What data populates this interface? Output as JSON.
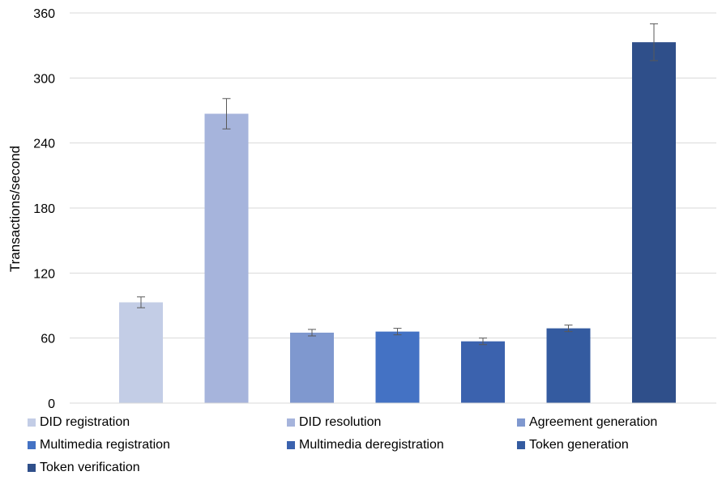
{
  "chart_data": {
    "type": "bar",
    "title": "",
    "xlabel": "",
    "ylabel": "Transactions/second",
    "ylim": [
      0,
      360
    ],
    "yticks": [
      0,
      60,
      120,
      180,
      240,
      300,
      360
    ],
    "grid": true,
    "legend_position": "bottom",
    "series": [
      {
        "name": "DID registration",
        "value": 93,
        "error": 5,
        "color": "#c3cde6"
      },
      {
        "name": "DID resolution",
        "value": 267,
        "error": 14,
        "color": "#a6b4dc"
      },
      {
        "name": "Agreement generation",
        "value": 65,
        "error": 3,
        "color": "#7f98cf"
      },
      {
        "name": "Multimedia registration",
        "value": 66,
        "error": 3,
        "color": "#4472c4"
      },
      {
        "name": "Multimedia deregistration",
        "value": 57,
        "error": 3,
        "color": "#3b62ae"
      },
      {
        "name": "Token generation",
        "value": 69,
        "error": 3,
        "color": "#345ba0"
      },
      {
        "name": "Token verification",
        "value": 333,
        "error": 17,
        "color": "#2f4f8a"
      }
    ]
  }
}
